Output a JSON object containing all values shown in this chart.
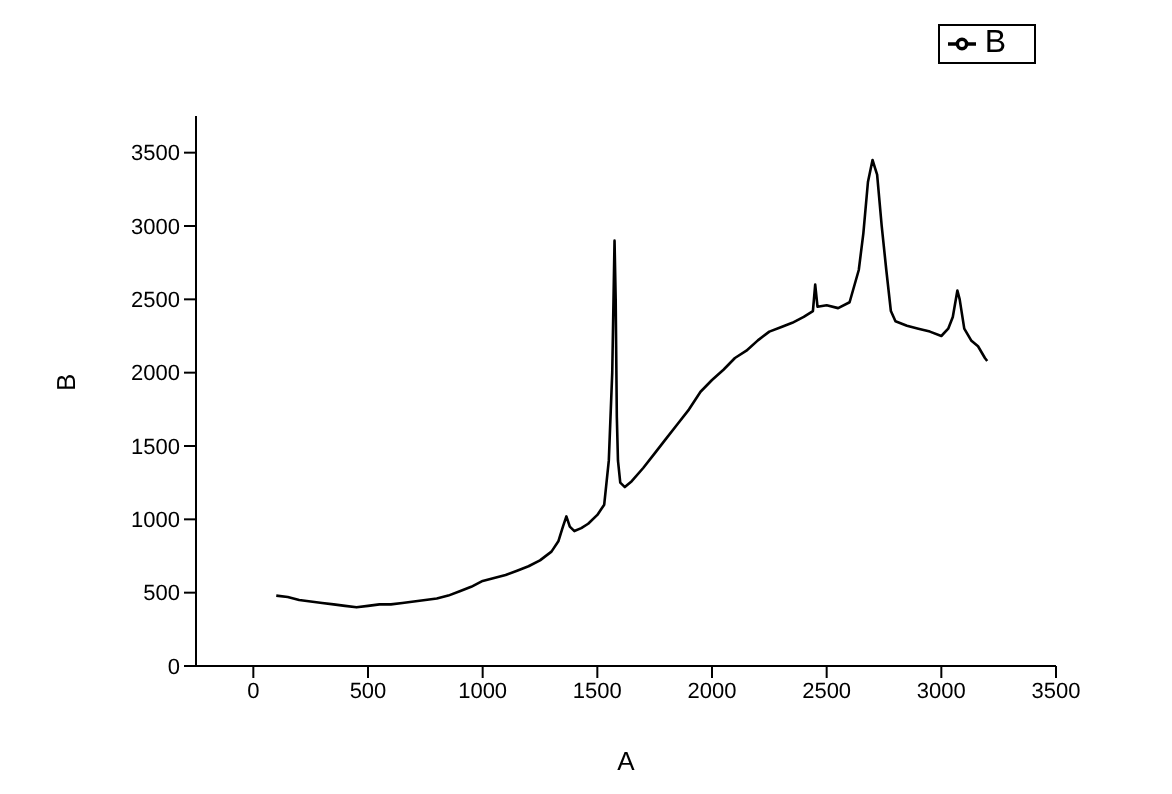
{
  "chart_data": {
    "type": "line",
    "xlabel": "A",
    "ylabel": "B",
    "legend": "top right",
    "grid": false,
    "marker": "none",
    "line_style": "solid",
    "xlim": [
      -250,
      3500
    ],
    "xticks": [
      0,
      500,
      1000,
      1500,
      2000,
      2500,
      3000,
      3500
    ],
    "ylim": [
      0,
      3750
    ],
    "yticks": [
      0,
      500,
      1000,
      1500,
      2000,
      2500,
      3000,
      3500
    ],
    "series": [
      {
        "name": "B",
        "color": "#000000",
        "x": [
          100,
          150,
          200,
          250,
          300,
          350,
          400,
          450,
          500,
          550,
          600,
          650,
          700,
          750,
          800,
          850,
          900,
          950,
          1000,
          1050,
          1100,
          1150,
          1200,
          1250,
          1300,
          1330,
          1350,
          1365,
          1380,
          1400,
          1430,
          1460,
          1500,
          1530,
          1550,
          1565,
          1575,
          1580,
          1585,
          1590,
          1600,
          1620,
          1650,
          1700,
          1750,
          1800,
          1850,
          1900,
          1950,
          2000,
          2050,
          2100,
          2150,
          2200,
          2250,
          2300,
          2350,
          2400,
          2440,
          2450,
          2460,
          2500,
          2550,
          2600,
          2640,
          2660,
          2680,
          2700,
          2710,
          2720,
          2740,
          2760,
          2780,
          2800,
          2850,
          2900,
          2950,
          3000,
          3030,
          3050,
          3070,
          3080,
          3100,
          3130,
          3160,
          3190,
          3200
        ],
        "values": [
          480,
          470,
          450,
          440,
          430,
          420,
          410,
          400,
          410,
          420,
          420,
          430,
          440,
          450,
          460,
          480,
          510,
          540,
          580,
          600,
          620,
          650,
          680,
          720,
          780,
          850,
          950,
          1020,
          950,
          920,
          940,
          970,
          1030,
          1100,
          1400,
          2000,
          2900,
          2500,
          1700,
          1400,
          1250,
          1220,
          1260,
          1350,
          1450,
          1550,
          1650,
          1750,
          1870,
          1950,
          2020,
          2100,
          2150,
          2220,
          2280,
          2310,
          2340,
          2380,
          2420,
          2600,
          2450,
          2460,
          2440,
          2480,
          2700,
          2950,
          3300,
          3450,
          3400,
          3350,
          3000,
          2700,
          2420,
          2350,
          2320,
          2300,
          2280,
          2250,
          2300,
          2380,
          2560,
          2500,
          2300,
          2220,
          2180,
          2100,
          2080
        ]
      }
    ]
  }
}
